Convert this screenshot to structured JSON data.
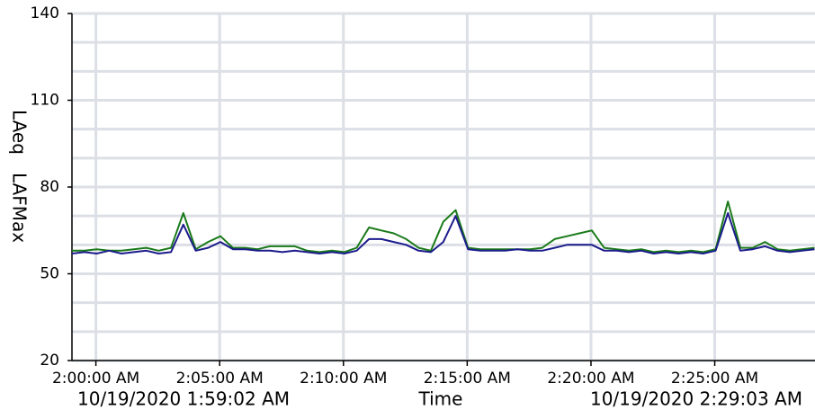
{
  "chart_data": {
    "type": "line",
    "xlabel": "Time",
    "ylabels": [
      {
        "text": "LAeq",
        "color": "#1c1c8c"
      },
      {
        "text": "LAFMax",
        "color": "#1a7a1a"
      }
    ],
    "xlim": [
      "10/19/2020 1:59:02 AM",
      "10/19/2020 2:29:03 AM"
    ],
    "xticks": [
      "2:00:00 AM",
      "2:05:00 AM",
      "2:10:00 AM",
      "2:15:00 AM",
      "2:20:00 AM",
      "2:25:00 AM"
    ],
    "ylim": [
      20,
      140
    ],
    "yticks": [
      20,
      50,
      80,
      110,
      140
    ],
    "yminor": [
      30,
      40,
      60,
      70,
      90,
      100,
      120,
      130
    ],
    "grid": true,
    "x": [
      "1:59:02 AM",
      "1:59:32 AM",
      "2:00:02 AM",
      "2:00:32 AM",
      "2:01:02 AM",
      "2:01:32 AM",
      "2:02:02 AM",
      "2:02:32 AM",
      "2:03:02 AM",
      "2:03:32 AM",
      "2:04:02 AM",
      "2:04:32 AM",
      "2:05:02 AM",
      "2:05:32 AM",
      "2:06:02 AM",
      "2:06:32 AM",
      "2:07:02 AM",
      "2:07:32 AM",
      "2:08:02 AM",
      "2:08:32 AM",
      "2:09:02 AM",
      "2:09:32 AM",
      "2:10:02 AM",
      "2:10:32 AM",
      "2:11:02 AM",
      "2:11:32 AM",
      "2:12:02 AM",
      "2:12:32 AM",
      "2:13:02 AM",
      "2:13:32 AM",
      "2:14:02 AM",
      "2:14:32 AM",
      "2:15:02 AM",
      "2:15:32 AM",
      "2:16:02 AM",
      "2:16:32 AM",
      "2:17:02 AM",
      "2:17:32 AM",
      "2:18:02 AM",
      "2:18:32 AM",
      "2:19:02 AM",
      "2:19:32 AM",
      "2:20:02 AM",
      "2:20:32 AM",
      "2:21:02 AM",
      "2:21:32 AM",
      "2:22:02 AM",
      "2:22:32 AM",
      "2:23:02 AM",
      "2:23:32 AM",
      "2:24:02 AM",
      "2:24:32 AM",
      "2:25:02 AM",
      "2:25:32 AM",
      "2:26:02 AM",
      "2:26:32 AM",
      "2:27:02 AM",
      "2:27:32 AM",
      "2:28:02 AM",
      "2:28:32 AM",
      "2:29:02 AM"
    ],
    "series": [
      {
        "name": "LAFMax",
        "color": "#1a7a1a",
        "values": [
          58,
          58,
          58.5,
          58,
          58,
          58.5,
          59,
          58,
          59,
          71,
          58.5,
          61,
          63,
          59,
          59,
          58.5,
          59.5,
          59.5,
          59.5,
          58,
          57.5,
          58,
          57.5,
          59,
          66,
          65,
          64,
          62,
          59,
          58,
          68,
          72,
          59,
          58.5,
          58.5,
          58.5,
          58.5,
          58.5,
          59,
          62,
          63,
          64,
          65,
          59,
          58.5,
          58,
          58.5,
          57.5,
          58,
          57.5,
          58,
          57.5,
          58.5,
          75,
          59,
          59,
          61,
          58.5,
          58,
          58.5,
          59
        ]
      },
      {
        "name": "LAeq",
        "color": "#1c1c8c",
        "values": [
          57,
          57.5,
          57,
          58,
          57,
          57.5,
          58,
          57,
          57.5,
          67,
          58,
          59,
          61,
          58.5,
          58.5,
          58,
          58,
          57.5,
          58,
          57.5,
          57,
          57.5,
          57,
          58,
          62,
          62,
          61,
          60,
          58,
          57.5,
          61,
          70,
          58.5,
          58,
          58,
          58,
          58.5,
          58,
          58,
          59,
          60,
          60,
          60,
          58,
          58,
          57.5,
          58,
          57,
          57.5,
          57,
          57.5,
          57,
          58,
          71,
          58,
          58.5,
          59.5,
          58,
          57.5,
          58,
          58.5
        ]
      }
    ]
  }
}
